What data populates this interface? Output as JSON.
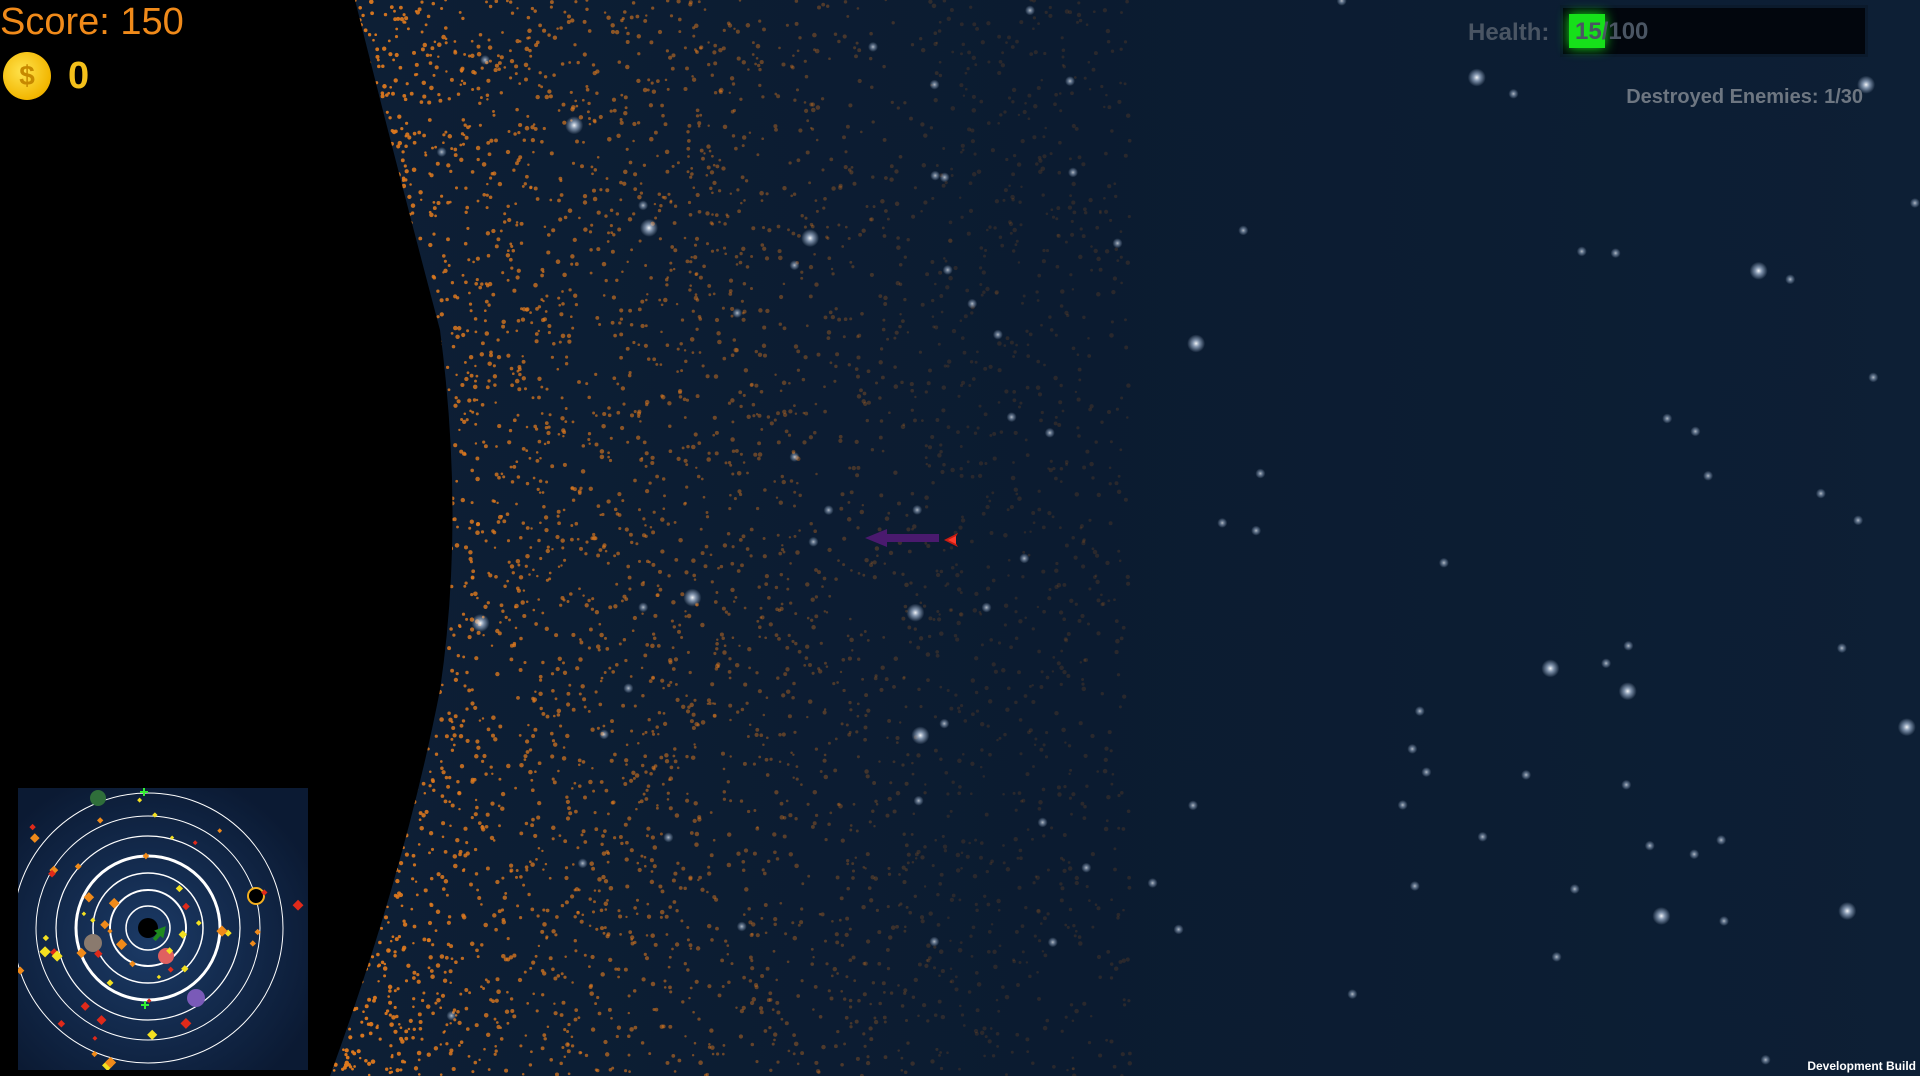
{
  "hud": {
    "score_text": "Score: 150",
    "coin_count": "0",
    "coin_icon": "$",
    "health_label": "Health:",
    "health_value": "15/100",
    "health_fraction": 0.15,
    "destroyed_enemies": "Destroyed Enemies: 1/30"
  },
  "footer": {
    "build_label": "Development Build"
  },
  "colors": {
    "space": "#0d1f33",
    "particles": "#e07a1e",
    "score": "#f08a1a",
    "coin": "#f4c01a",
    "health_fill": "#16e01a"
  },
  "icons": {
    "coin": "coin-icon",
    "player_ship": "player-ship-icon",
    "projectile": "projectile-icon",
    "minimap_player": "minimap-player-arrow-icon"
  }
}
